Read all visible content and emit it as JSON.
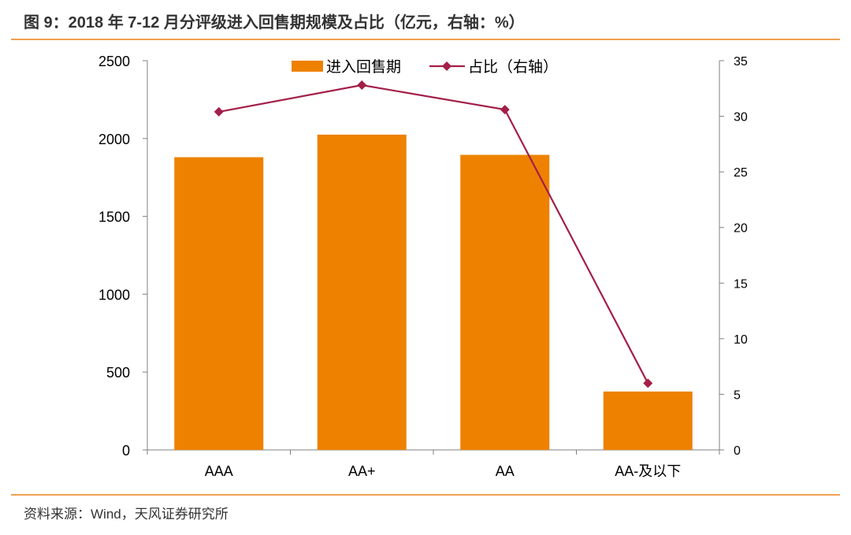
{
  "title": "图 9：2018 年 7-12 月分评级进入回售期规模及占比（亿元，右轴：%）",
  "source": "资料来源：Wind，天风证券研究所",
  "chart_data": {
    "type": "bar",
    "categories": [
      "AAA",
      "AA+",
      "AA",
      "AA-及以下"
    ],
    "series": [
      {
        "name": "进入回售期",
        "type": "bar",
        "axis": "left",
        "color": "#ee8100",
        "values": [
          1880,
          2025,
          1895,
          375
        ]
      },
      {
        "name": "占比（右轴）",
        "type": "line",
        "axis": "right",
        "color": "#a31f48",
        "values": [
          30.4,
          32.8,
          30.6,
          6.0
        ]
      }
    ],
    "y_left": {
      "min": 0,
      "max": 2500,
      "ticks": [
        0,
        500,
        1000,
        1500,
        2000,
        2500
      ]
    },
    "y_right": {
      "min": 0,
      "max": 35,
      "ticks": [
        0,
        5,
        10,
        15,
        20,
        25,
        30,
        35
      ]
    },
    "legend_position": "top-center",
    "grid": false
  }
}
